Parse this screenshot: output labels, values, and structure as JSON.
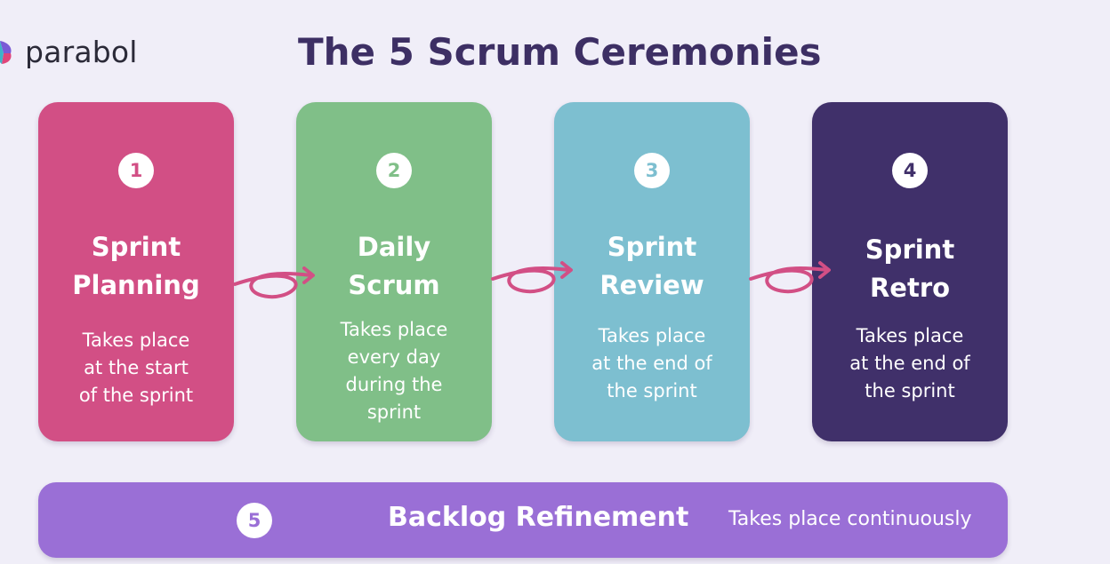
{
  "brand": {
    "name": "parabol"
  },
  "title": "The 5 Scrum Ceremonies",
  "colors": {
    "title": "#3d2f64",
    "planning": "#d24f85",
    "daily": "#80bf88",
    "review": "#7dbfd0",
    "retro": "#40306a",
    "refinement": "#9a6fd6",
    "arrow": "#d24f85",
    "background": "#f0eef8"
  },
  "ceremonies": [
    {
      "number": "1",
      "title_lines": [
        "Sprint",
        "Planning"
      ],
      "desc_lines": [
        "Takes place",
        "at the start",
        "of the sprint"
      ]
    },
    {
      "number": "2",
      "title_lines": [
        "Daily",
        "Scrum"
      ],
      "desc_lines": [
        "Takes place",
        "every day",
        "during the",
        "sprint"
      ]
    },
    {
      "number": "3",
      "title_lines": [
        "Sprint",
        "Review"
      ],
      "desc_lines": [
        "Takes place",
        "at the end of",
        "the sprint"
      ]
    },
    {
      "number": "4",
      "title_lines": [
        "Sprint",
        "Retro"
      ],
      "desc_lines": [
        "Takes place",
        "at the end of",
        "the sprint"
      ]
    }
  ],
  "refinement": {
    "number": "5",
    "title": "Backlog Refinement",
    "desc": "Takes place continuously"
  },
  "icons": {
    "logo": "parabol-logo-icon",
    "arrow": "loop-arrow-icon"
  }
}
